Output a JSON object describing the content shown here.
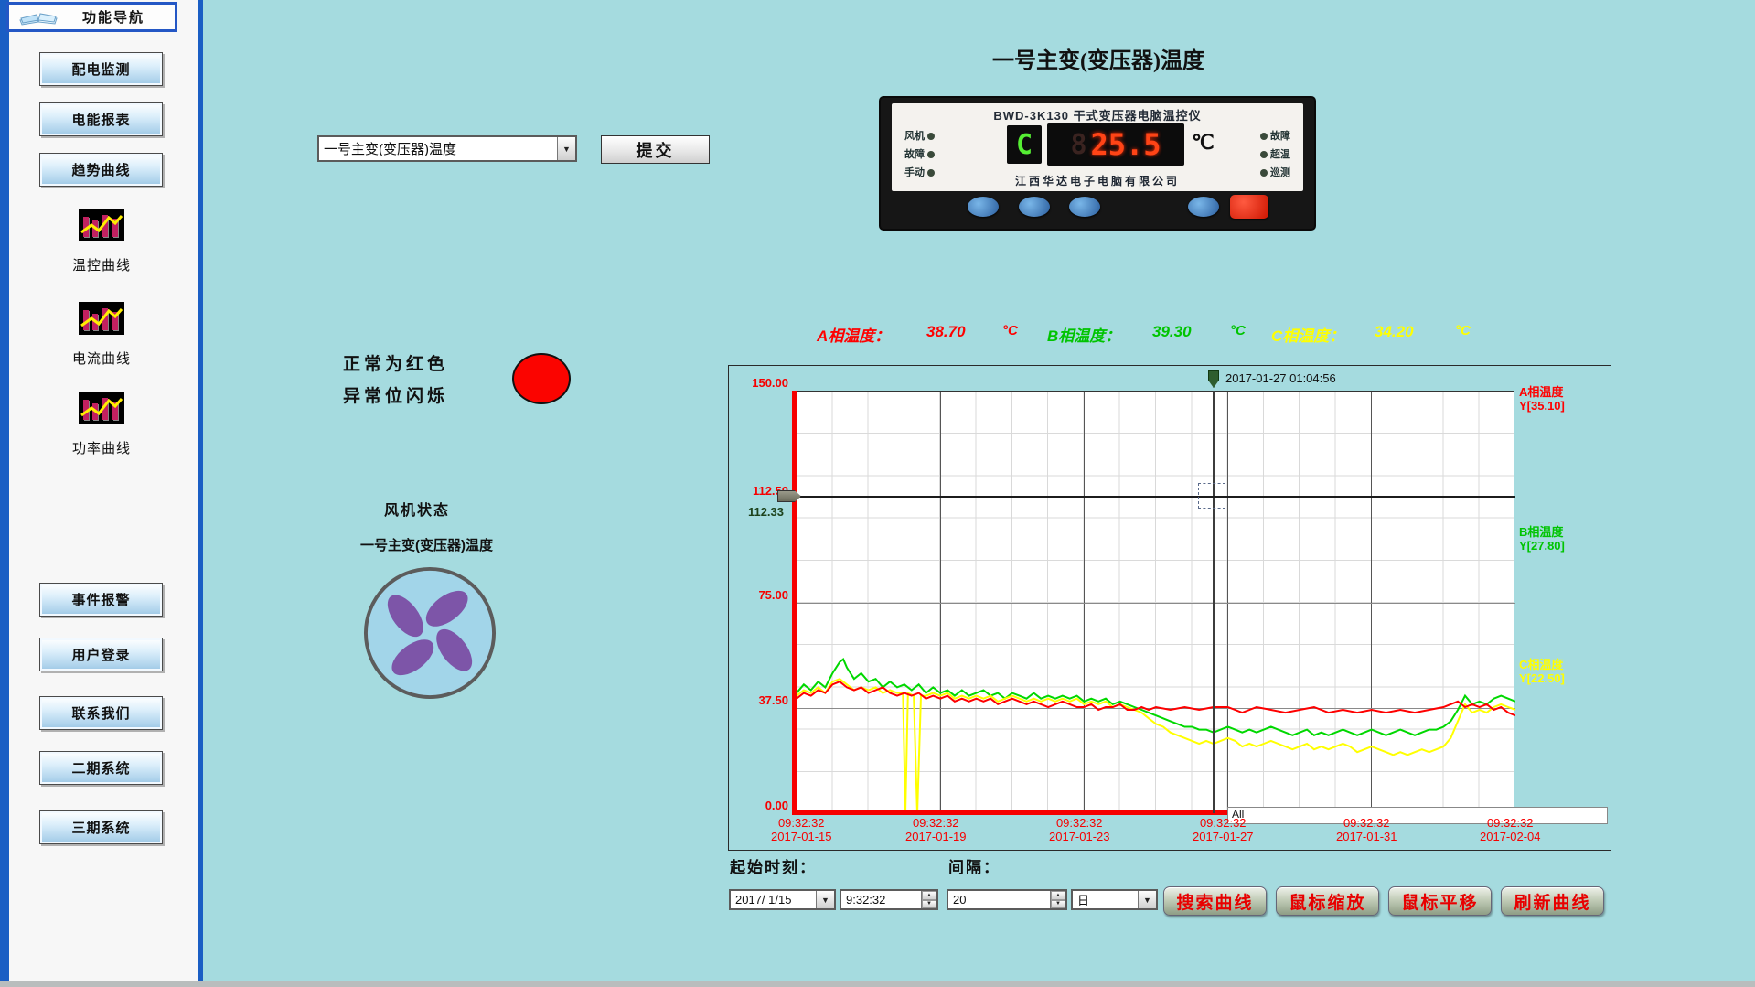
{
  "window": {
    "bg": "#a5dbdf"
  },
  "sidebar": {
    "title": "功能导航",
    "nav": [
      {
        "label": "配电监测"
      },
      {
        "label": "电能报表"
      },
      {
        "label": "趋势曲线"
      }
    ],
    "shortcuts": [
      {
        "label": "温控曲线"
      },
      {
        "label": "电流曲线"
      },
      {
        "label": "功率曲线"
      }
    ],
    "bottom": [
      {
        "label": "事件报警"
      },
      {
        "label": "用户登录"
      },
      {
        "label": "联系我们"
      },
      {
        "label": "二期系统"
      },
      {
        "label": "三期系统"
      }
    ]
  },
  "page_title": "一号主变(变压器)温度",
  "selector": {
    "value": "一号主变(变压器)温度",
    "submit": "提交"
  },
  "device": {
    "model": "BWD-3K130  干式变压器电脑温控仪",
    "left_leds": [
      "风机",
      "故障",
      "手动"
    ],
    "right_leds": [
      "故障",
      "超温",
      "巡测"
    ],
    "channel": "C",
    "ghost_digit": "8",
    "value": "25.5",
    "unit": "℃",
    "company": "江西华达电子电脑有限公司"
  },
  "readings": {
    "a_label": "A相温度：",
    "a_value": "38.70",
    "a_unit": "°C",
    "b_label": "B相温度：",
    "b_value": "39.30",
    "b_unit": "°C",
    "c_label": "C相温度：",
    "c_value": "34.20",
    "c_unit": "°C"
  },
  "status": {
    "line1": "正常为红色",
    "line2": "异常位闪烁",
    "fan_label": "风机状态",
    "fan_sub": "一号主变(变压器)温度"
  },
  "chart_data": {
    "type": "line",
    "ylim": [
      0,
      150
    ],
    "grid": true,
    "legend_position": "right",
    "yticks": [
      "150.00",
      "112.50",
      "75.00",
      "37.50",
      "0.00"
    ],
    "y_cursor_value": "112.33",
    "cursor_time": "2017-01-27 01:04:56",
    "range_label": "All",
    "xticks": [
      {
        "time": "09:32:32",
        "date": "2017-01-15"
      },
      {
        "time": "09:32:32",
        "date": "2017-01-19"
      },
      {
        "time": "09:32:32",
        "date": "2017-01-23"
      },
      {
        "time": "09:32:32",
        "date": "2017-01-27"
      },
      {
        "time": "09:32:32",
        "date": "2017-01-31"
      },
      {
        "time": "09:32:32",
        "date": "2017-02-04"
      }
    ],
    "legend": [
      {
        "name": "A相温度",
        "value": "Y[35.10]",
        "color": "#ff0000"
      },
      {
        "name": "B相温度",
        "value": "Y[27.80]",
        "color": "#00d000"
      },
      {
        "name": "C相温度",
        "value": "Y[22.50]",
        "color": "#ffff00"
      }
    ],
    "series": [
      {
        "name": "B相温度",
        "color": "#00d800",
        "points": [
          [
            0,
            43
          ],
          [
            0.01,
            46
          ],
          [
            0.02,
            44
          ],
          [
            0.03,
            47
          ],
          [
            0.04,
            45
          ],
          [
            0.05,
            50
          ],
          [
            0.06,
            54
          ],
          [
            0.065,
            55
          ],
          [
            0.07,
            52
          ],
          [
            0.08,
            48
          ],
          [
            0.09,
            50
          ],
          [
            0.1,
            47
          ],
          [
            0.11,
            48
          ],
          [
            0.12,
            45
          ],
          [
            0.13,
            47
          ],
          [
            0.14,
            45
          ],
          [
            0.15,
            46
          ],
          [
            0.16,
            44
          ],
          [
            0.17,
            46
          ],
          [
            0.18,
            43
          ],
          [
            0.19,
            45
          ],
          [
            0.2,
            43
          ],
          [
            0.21,
            44
          ],
          [
            0.22,
            42
          ],
          [
            0.23,
            44
          ],
          [
            0.24,
            42
          ],
          [
            0.25,
            43
          ],
          [
            0.26,
            44
          ],
          [
            0.27,
            42
          ],
          [
            0.28,
            43
          ],
          [
            0.29,
            41
          ],
          [
            0.3,
            43
          ],
          [
            0.31,
            42
          ],
          [
            0.32,
            41
          ],
          [
            0.33,
            43
          ],
          [
            0.34,
            41
          ],
          [
            0.35,
            42
          ],
          [
            0.36,
            41
          ],
          [
            0.37,
            42
          ],
          [
            0.38,
            41
          ],
          [
            0.39,
            42
          ],
          [
            0.4,
            40
          ],
          [
            0.41,
            41
          ],
          [
            0.42,
            40
          ],
          [
            0.43,
            41
          ],
          [
            0.44,
            39
          ],
          [
            0.45,
            40
          ],
          [
            0.46,
            39
          ],
          [
            0.47,
            38
          ],
          [
            0.48,
            37
          ],
          [
            0.49,
            36
          ],
          [
            0.5,
            35
          ],
          [
            0.51,
            34
          ],
          [
            0.52,
            33
          ],
          [
            0.53,
            32
          ],
          [
            0.54,
            31
          ],
          [
            0.55,
            31
          ],
          [
            0.56,
            30
          ],
          [
            0.57,
            30
          ],
          [
            0.58,
            29
          ],
          [
            0.59,
            30
          ],
          [
            0.6,
            31
          ],
          [
            0.61,
            30
          ],
          [
            0.62,
            29
          ],
          [
            0.63,
            30
          ],
          [
            0.64,
            29
          ],
          [
            0.65,
            30
          ],
          [
            0.66,
            31
          ],
          [
            0.67,
            30
          ],
          [
            0.68,
            29
          ],
          [
            0.69,
            28
          ],
          [
            0.7,
            29
          ],
          [
            0.71,
            30
          ],
          [
            0.72,
            28
          ],
          [
            0.73,
            29
          ],
          [
            0.74,
            28
          ],
          [
            0.75,
            29
          ],
          [
            0.76,
            30
          ],
          [
            0.77,
            29
          ],
          [
            0.78,
            28
          ],
          [
            0.79,
            29
          ],
          [
            0.8,
            30
          ],
          [
            0.81,
            29
          ],
          [
            0.82,
            28
          ],
          [
            0.83,
            29
          ],
          [
            0.84,
            30
          ],
          [
            0.85,
            29
          ],
          [
            0.86,
            28
          ],
          [
            0.87,
            29
          ],
          [
            0.88,
            30
          ],
          [
            0.89,
            30
          ],
          [
            0.9,
            31
          ],
          [
            0.91,
            33
          ],
          [
            0.92,
            37
          ],
          [
            0.93,
            42
          ],
          [
            0.94,
            39
          ],
          [
            0.95,
            40
          ],
          [
            0.96,
            39
          ],
          [
            0.97,
            41
          ],
          [
            0.98,
            42
          ],
          [
            0.99,
            41
          ],
          [
            1,
            40
          ]
        ]
      },
      {
        "name": "C相温度",
        "color": "#ffff00",
        "points": [
          [
            0,
            42
          ],
          [
            0.01,
            44
          ],
          [
            0.02,
            43
          ],
          [
            0.03,
            45
          ],
          [
            0.04,
            43
          ],
          [
            0.05,
            47
          ],
          [
            0.06,
            48
          ],
          [
            0.07,
            46
          ],
          [
            0.08,
            44
          ],
          [
            0.09,
            45
          ],
          [
            0.1,
            44
          ],
          [
            0.11,
            45
          ],
          [
            0.12,
            43
          ],
          [
            0.13,
            44
          ],
          [
            0.14,
            43
          ],
          [
            0.148,
            43
          ],
          [
            0.1514,
            0
          ],
          [
            0.155,
            43
          ],
          [
            0.163,
            42
          ],
          [
            0.168,
            0
          ],
          [
            0.173,
            42
          ],
          [
            0.18,
            42
          ],
          [
            0.19,
            43
          ],
          [
            0.2,
            42
          ],
          [
            0.21,
            43
          ],
          [
            0.22,
            41
          ],
          [
            0.23,
            42
          ],
          [
            0.24,
            41
          ],
          [
            0.25,
            42
          ],
          [
            0.26,
            41
          ],
          [
            0.27,
            42
          ],
          [
            0.28,
            40
          ],
          [
            0.29,
            41
          ],
          [
            0.3,
            42
          ],
          [
            0.31,
            41
          ],
          [
            0.32,
            40
          ],
          [
            0.33,
            41
          ],
          [
            0.34,
            40
          ],
          [
            0.35,
            41
          ],
          [
            0.36,
            40
          ],
          [
            0.37,
            41
          ],
          [
            0.38,
            40
          ],
          [
            0.39,
            41
          ],
          [
            0.4,
            39
          ],
          [
            0.41,
            40
          ],
          [
            0.42,
            39
          ],
          [
            0.43,
            40
          ],
          [
            0.44,
            38
          ],
          [
            0.45,
            39
          ],
          [
            0.46,
            38
          ],
          [
            0.47,
            37
          ],
          [
            0.48,
            36
          ],
          [
            0.49,
            34
          ],
          [
            0.5,
            32
          ],
          [
            0.51,
            31
          ],
          [
            0.52,
            29
          ],
          [
            0.53,
            28
          ],
          [
            0.54,
            27
          ],
          [
            0.55,
            26
          ],
          [
            0.56,
            25
          ],
          [
            0.57,
            26
          ],
          [
            0.58,
            25
          ],
          [
            0.59,
            26
          ],
          [
            0.6,
            27
          ],
          [
            0.61,
            26
          ],
          [
            0.62,
            24
          ],
          [
            0.63,
            25
          ],
          [
            0.64,
            24
          ],
          [
            0.65,
            25
          ],
          [
            0.66,
            26
          ],
          [
            0.67,
            25
          ],
          [
            0.68,
            24
          ],
          [
            0.69,
            23
          ],
          [
            0.7,
            24
          ],
          [
            0.71,
            25
          ],
          [
            0.72,
            23
          ],
          [
            0.73,
            24
          ],
          [
            0.74,
            23
          ],
          [
            0.75,
            24
          ],
          [
            0.76,
            25
          ],
          [
            0.77,
            24
          ],
          [
            0.78,
            22
          ],
          [
            0.79,
            23
          ],
          [
            0.8,
            24
          ],
          [
            0.81,
            23
          ],
          [
            0.82,
            22
          ],
          [
            0.83,
            21
          ],
          [
            0.84,
            22
          ],
          [
            0.85,
            21
          ],
          [
            0.86,
            22
          ],
          [
            0.87,
            23
          ],
          [
            0.88,
            22
          ],
          [
            0.89,
            23
          ],
          [
            0.9,
            24
          ],
          [
            0.91,
            27
          ],
          [
            0.92,
            33
          ],
          [
            0.93,
            39
          ],
          [
            0.94,
            36
          ],
          [
            0.95,
            37
          ],
          [
            0.96,
            36
          ],
          [
            0.97,
            38
          ],
          [
            0.98,
            39
          ],
          [
            0.99,
            38
          ],
          [
            1,
            37
          ]
        ]
      },
      {
        "name": "A相温度",
        "color": "#ff0000",
        "points": [
          [
            0,
            41
          ],
          [
            0.01,
            43
          ],
          [
            0.02,
            42
          ],
          [
            0.03,
            44
          ],
          [
            0.04,
            43
          ],
          [
            0.05,
            46
          ],
          [
            0.06,
            47
          ],
          [
            0.07,
            45
          ],
          [
            0.08,
            44
          ],
          [
            0.09,
            45
          ],
          [
            0.1,
            43
          ],
          [
            0.11,
            44
          ],
          [
            0.12,
            45
          ],
          [
            0.13,
            43
          ],
          [
            0.14,
            42
          ],
          [
            0.15,
            43
          ],
          [
            0.16,
            42
          ],
          [
            0.17,
            43
          ],
          [
            0.18,
            41
          ],
          [
            0.19,
            42
          ],
          [
            0.2,
            41
          ],
          [
            0.21,
            42
          ],
          [
            0.22,
            40
          ],
          [
            0.23,
            41
          ],
          [
            0.24,
            40
          ],
          [
            0.25,
            41
          ],
          [
            0.26,
            40
          ],
          [
            0.27,
            41
          ],
          [
            0.28,
            39
          ],
          [
            0.29,
            40
          ],
          [
            0.3,
            41
          ],
          [
            0.31,
            40
          ],
          [
            0.32,
            39
          ],
          [
            0.33,
            40
          ],
          [
            0.34,
            39
          ],
          [
            0.35,
            38
          ],
          [
            0.36,
            39
          ],
          [
            0.37,
            40
          ],
          [
            0.38,
            39
          ],
          [
            0.39,
            38
          ],
          [
            0.4,
            38
          ],
          [
            0.41,
            39
          ],
          [
            0.42,
            37
          ],
          [
            0.43,
            38
          ],
          [
            0.44,
            38
          ],
          [
            0.45,
            39
          ],
          [
            0.46,
            37
          ],
          [
            0.47,
            37
          ],
          [
            0.48,
            38
          ],
          [
            0.49,
            37
          ],
          [
            0.5,
            38
          ],
          [
            0.52,
            37
          ],
          [
            0.54,
            38
          ],
          [
            0.56,
            37
          ],
          [
            0.58,
            38
          ],
          [
            0.6,
            38
          ],
          [
            0.62,
            36
          ],
          [
            0.64,
            38
          ],
          [
            0.66,
            37
          ],
          [
            0.68,
            36
          ],
          [
            0.7,
            37
          ],
          [
            0.72,
            38
          ],
          [
            0.74,
            36
          ],
          [
            0.76,
            37
          ],
          [
            0.78,
            36
          ],
          [
            0.8,
            37
          ],
          [
            0.82,
            36
          ],
          [
            0.84,
            37
          ],
          [
            0.86,
            36
          ],
          [
            0.88,
            37
          ],
          [
            0.9,
            38
          ],
          [
            0.92,
            40
          ],
          [
            0.93,
            38
          ],
          [
            0.94,
            39
          ],
          [
            0.95,
            38
          ],
          [
            0.96,
            39
          ],
          [
            0.97,
            37
          ],
          [
            0.98,
            38
          ],
          [
            0.99,
            36
          ],
          [
            1,
            35
          ]
        ]
      }
    ]
  },
  "controls": {
    "start_label": "起始时刻：",
    "date": "2017/ 1/15",
    "time": "9:32:32",
    "interval_label": "间隔：",
    "interval": "20",
    "unit": "日",
    "buttons": [
      "搜索曲线",
      "鼠标缩放",
      "鼠标平移",
      "刷新曲线"
    ]
  }
}
